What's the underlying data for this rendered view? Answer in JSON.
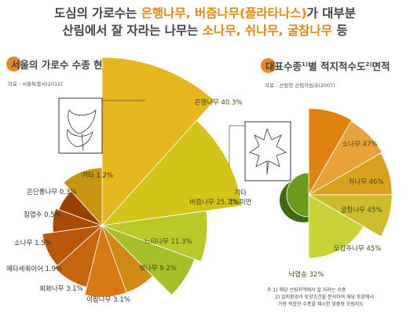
{
  "headline": {
    "line1_a": "도심의 가로수는 ",
    "line1_hl": "은행나무, 버즘나무(플라타나스)",
    "line1_b": "가 대부분",
    "line2_a": "산림에서 잘 자라는 나무는 ",
    "line2_hl": "소나무, 쉬나무, 굴참나무",
    "line2_b": " 등"
  },
  "left_section": {
    "title": "서울의 가로수 수종 현황",
    "source": "자료 : 서울특별시(2012)"
  },
  "right_section": {
    "title_a": "대표수종",
    "title_sup1": "1)",
    "title_b": "별 적지적수도",
    "title_sup2": "2)",
    "title_c": "면적",
    "source": "자료 : 산림청 산림자원과(2007)"
  },
  "notes": {
    "line1": "주 1) 해당 산림지역에서 잘 자라는 수종",
    "line2": "2) 입지환경과 토양조건을 분석하여 해당 토양에서",
    "line3": "가장 적합한 수종을 제시한 맞춤형 조림지도"
  },
  "chart_data": [
    {
      "type": "pie",
      "title": "서울의 가로수 수종 현황",
      "categories": [
        "은행나무",
        "버즘나무",
        "느티나무",
        "벚나무",
        "이팝나무",
        "회화나무",
        "메타세쿼이어",
        "소나무",
        "침엽수",
        "은단풍나무",
        "기타"
      ],
      "values": [
        40.3,
        25.7,
        11.3,
        9.2,
        3.1,
        3.1,
        1.9,
        1.5,
        0.5,
        0.3,
        1.2
      ],
      "labels": [
        "은행나무 40.3%",
        "버즘나무 25.7%",
        "느티나무 11.3%",
        "벚나무 9.2%",
        "이팝나무 3.1%",
        "회화나무 3.1%",
        "메타세쿼이어 1.9%",
        "소나무 1.5%",
        "침엽수 0.5%",
        "은단풍나무 0.3%",
        "기타 1.2%"
      ]
    },
    {
      "type": "pie",
      "title": "대표수종별 적지적수도면적",
      "categories": [
        "소나무",
        "쉬나무",
        "굴참나무",
        "모감주나무",
        "낙엽송",
        "기타"
      ],
      "values": [
        47,
        46,
        45,
        45,
        32,
        1
      ],
      "labels": [
        "소나무 47%",
        "쉬나무 46%",
        "굴참나무 45%",
        "모감주나무 45%",
        "낙엽송 32%",
        "기타 1%미만"
      ]
    }
  ]
}
